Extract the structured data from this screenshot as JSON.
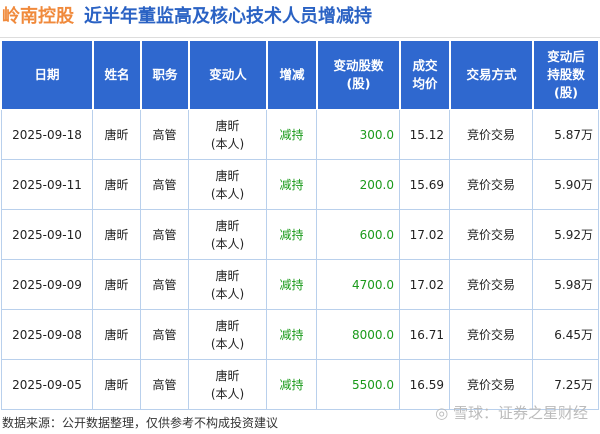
{
  "title": {
    "company": "岭南控股",
    "subtitle": "近半年董监高及核心技术人员增减持"
  },
  "columns": {
    "date": "日期",
    "name": "姓名",
    "position": "职务",
    "changer": "变动人",
    "direction": "增减",
    "shares": "变动股数",
    "shares_unit": "(股)",
    "price_1": "成交",
    "price_2": "均价",
    "method": "交易方式",
    "after_1": "变动后",
    "after_2": "持股数",
    "after_3": "(股)"
  },
  "rows": [
    {
      "date": "2025-09-18",
      "name": "唐昕",
      "position": "高管",
      "changer": "唐昕",
      "changer_note": "(本人)",
      "direction": "减持",
      "shares": "300.0",
      "price": "15.12",
      "method": "竞价交易",
      "after": "5.87万"
    },
    {
      "date": "2025-09-11",
      "name": "唐昕",
      "position": "高管",
      "changer": "唐昕",
      "changer_note": "(本人)",
      "direction": "减持",
      "shares": "200.0",
      "price": "15.69",
      "method": "竞价交易",
      "after": "5.90万"
    },
    {
      "date": "2025-09-10",
      "name": "唐昕",
      "position": "高管",
      "changer": "唐昕",
      "changer_note": "(本人)",
      "direction": "减持",
      "shares": "600.0",
      "price": "17.02",
      "method": "竞价交易",
      "after": "5.92万"
    },
    {
      "date": "2025-09-09",
      "name": "唐昕",
      "position": "高管",
      "changer": "唐昕",
      "changer_note": "(本人)",
      "direction": "减持",
      "shares": "4700.0",
      "price": "17.02",
      "method": "竞价交易",
      "after": "5.98万"
    },
    {
      "date": "2025-09-08",
      "name": "唐昕",
      "position": "高管",
      "changer": "唐昕",
      "changer_note": "(本人)",
      "direction": "减持",
      "shares": "8000.0",
      "price": "16.71",
      "method": "竞价交易",
      "after": "6.45万"
    },
    {
      "date": "2025-09-05",
      "name": "唐昕",
      "position": "高管",
      "changer": "唐昕",
      "changer_note": "(本人)",
      "direction": "减持",
      "shares": "5500.0",
      "price": "16.59",
      "method": "竞价交易",
      "after": "7.25万"
    }
  ],
  "footer": {
    "source": "数据来源：公开数据整理，仅供参考不构成投资建议",
    "logo": "雪球：证券之星财经"
  },
  "colors": {
    "header_bg": "#2f68cf",
    "title_orange": "#f08a3c",
    "title_blue": "#2a62c4",
    "decrease_green": "#1a9a1a"
  }
}
